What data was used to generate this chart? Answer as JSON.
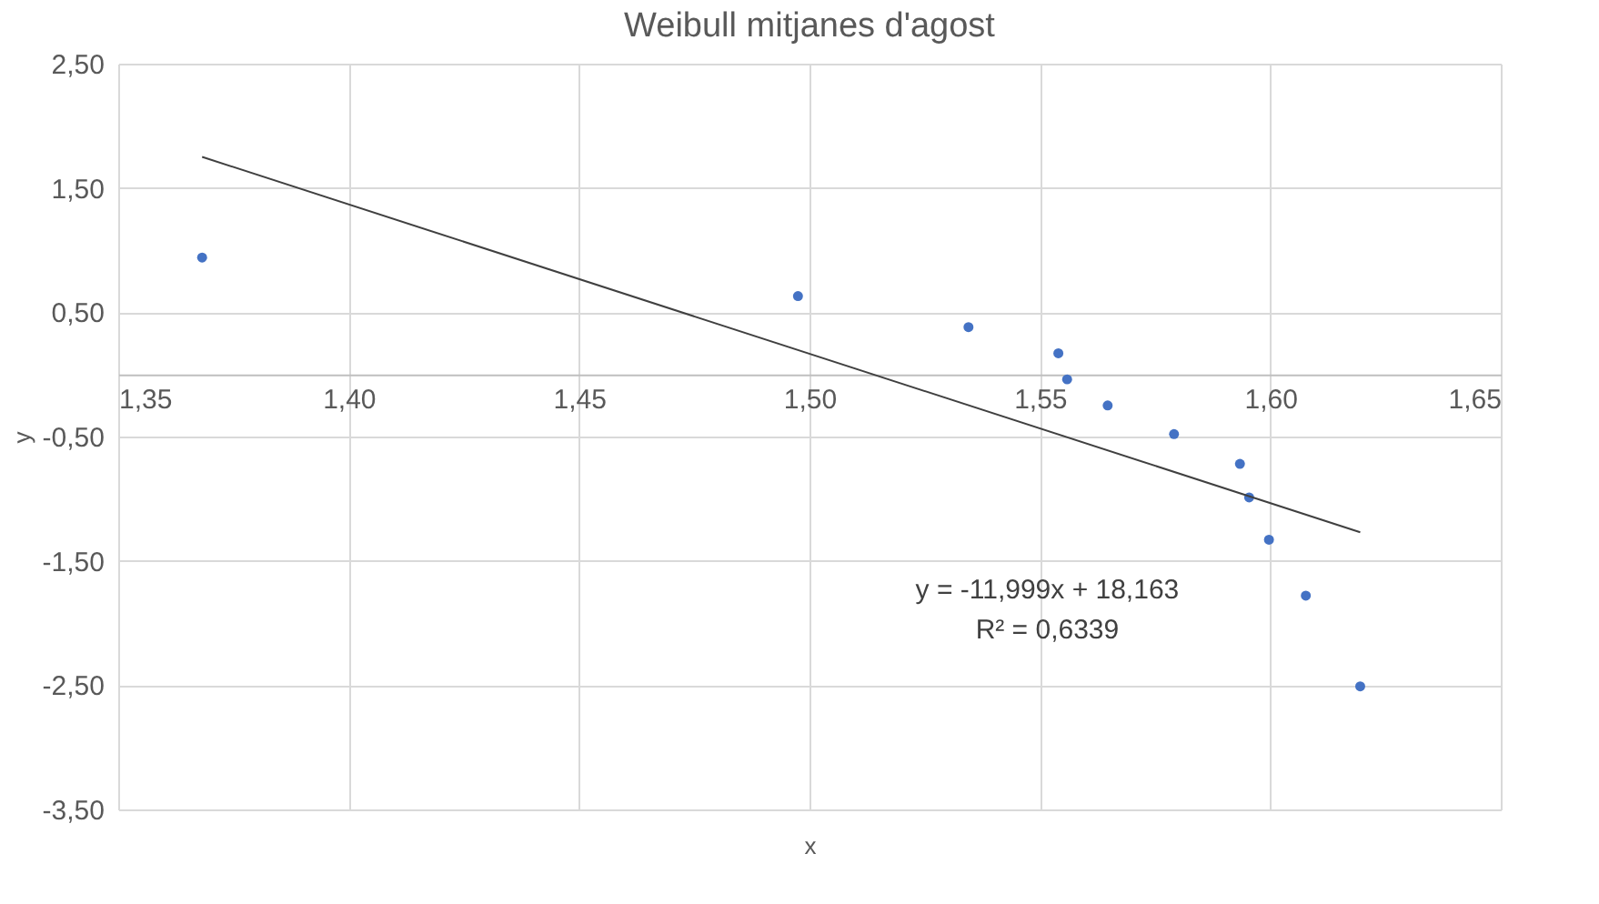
{
  "chart_data": {
    "type": "scatter",
    "title": "Weibull mitjanes d'agost",
    "xlabel": "x",
    "ylabel": "y",
    "xlim": [
      1.35,
      1.65
    ],
    "xticks": [
      {
        "value": 1.35,
        "label": "1,35"
      },
      {
        "value": 1.4,
        "label": "1,40"
      },
      {
        "value": 1.45,
        "label": "1,45"
      },
      {
        "value": 1.5,
        "label": "1,50"
      },
      {
        "value": 1.55,
        "label": "1,55"
      },
      {
        "value": 1.6,
        "label": "1,60"
      },
      {
        "value": 1.65,
        "label": "1,65"
      }
    ],
    "ylim": [
      -3.5,
      2.5
    ],
    "yticks": [
      {
        "value": -3.5,
        "label": "-3,50"
      },
      {
        "value": -2.5,
        "label": "-2,50"
      },
      {
        "value": -1.5,
        "label": "-1,50"
      },
      {
        "value": -0.5,
        "label": "-0,50"
      },
      {
        "value": 0.5,
        "label": "0,50"
      },
      {
        "value": 1.5,
        "label": "1,50"
      },
      {
        "value": 2.5,
        "label": "2,50"
      }
    ],
    "grid": true,
    "marker": "circle",
    "series": [
      {
        "color": "#4472c4",
        "x": [
          1.3682,
          1.4975,
          1.5345,
          1.554,
          1.5559,
          1.5647,
          1.5791,
          1.5934,
          1.5954,
          1.5997,
          1.6077,
          1.6195
        ],
        "values": [
          0.94,
          0.63,
          0.38,
          0.17,
          -0.04,
          -0.25,
          -0.48,
          -0.72,
          -0.99,
          -1.33,
          -1.78,
          -2.51
        ]
      },
      {
        "type": "line",
        "color": "#404040",
        "marker": "none",
        "line_style": "solid",
        "x": [
          1.3682,
          1.6195
        ],
        "values": [
          1.75,
          -1.27
        ]
      }
    ],
    "annotations": [
      "y = -11,999x + 18,163",
      "R² = 0,6339"
    ]
  }
}
